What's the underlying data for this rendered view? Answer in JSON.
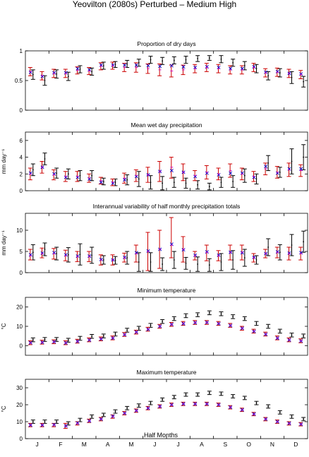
{
  "title": "Yeovilton (2080s) Perturbed – Medium High",
  "xlabel": "Half Months",
  "months": [
    "J",
    "F",
    "M",
    "A",
    "M",
    "J",
    "J",
    "A",
    "S",
    "O",
    "N",
    "D"
  ],
  "colors": {
    "observed": "#000000",
    "control": "#cc0000",
    "perturbed": "#0000cc",
    "marker": "#cc00cc"
  },
  "chart_data": [
    {
      "type": "errorbar",
      "title": "Proportion of dry days",
      "ylabel": "",
      "ylim": [
        0,
        1
      ],
      "yticks": [
        0,
        0.5,
        1
      ],
      "yticklabels": [
        "0",
        "0.5",
        "1"
      ],
      "x": [
        1,
        2,
        3,
        4,
        5,
        6,
        7,
        8,
        9,
        10,
        11,
        12,
        13,
        14,
        15,
        16,
        17,
        18,
        19,
        20,
        21,
        22,
        23,
        24
      ],
      "series": [
        {
          "role": "observed",
          "mid": [
            0.6,
            0.5,
            0.61,
            0.57,
            0.69,
            0.65,
            0.75,
            0.77,
            0.78,
            0.8,
            0.85,
            0.83,
            0.84,
            0.85,
            0.87,
            0.88,
            0.86,
            0.8,
            0.75,
            0.7,
            0.58,
            0.63,
            0.55,
            0.48
          ],
          "lo": [
            0.52,
            0.42,
            0.54,
            0.5,
            0.63,
            0.59,
            0.69,
            0.72,
            0.72,
            0.74,
            0.79,
            0.77,
            0.78,
            0.79,
            0.82,
            0.84,
            0.8,
            0.74,
            0.68,
            0.63,
            0.51,
            0.56,
            0.45,
            0.39
          ],
          "hi": [
            0.68,
            0.58,
            0.68,
            0.64,
            0.75,
            0.71,
            0.81,
            0.82,
            0.84,
            0.86,
            0.91,
            0.89,
            0.9,
            0.91,
            0.92,
            0.92,
            0.92,
            0.86,
            0.82,
            0.77,
            0.65,
            0.7,
            0.65,
            0.57
          ]
        },
        {
          "role": "control",
          "mid": [
            0.65,
            0.58,
            0.62,
            0.62,
            0.67,
            0.66,
            0.74,
            0.75,
            0.72,
            0.72,
            0.7,
            0.68,
            0.66,
            0.68,
            0.7,
            0.72,
            0.7,
            0.68,
            0.68,
            0.72,
            0.63,
            0.64,
            0.62,
            0.6
          ],
          "lo": [
            0.58,
            0.51,
            0.55,
            0.55,
            0.61,
            0.6,
            0.68,
            0.69,
            0.65,
            0.64,
            0.62,
            0.58,
            0.56,
            0.6,
            0.63,
            0.65,
            0.63,
            0.61,
            0.61,
            0.65,
            0.56,
            0.57,
            0.55,
            0.53
          ],
          "hi": [
            0.72,
            0.65,
            0.69,
            0.69,
            0.73,
            0.72,
            0.8,
            0.81,
            0.79,
            0.8,
            0.78,
            0.78,
            0.76,
            0.76,
            0.77,
            0.79,
            0.77,
            0.75,
            0.75,
            0.79,
            0.7,
            0.71,
            0.69,
            0.67
          ]
        },
        {
          "role": "perturbed",
          "mid": [
            0.64,
            0.57,
            0.63,
            0.63,
            0.7,
            0.68,
            0.76,
            0.76,
            0.76,
            0.76,
            0.75,
            0.74,
            0.75,
            0.73,
            0.72,
            0.73,
            0.72,
            0.7,
            0.7,
            0.73,
            0.64,
            0.65,
            0.62,
            0.61
          ]
        }
      ]
    },
    {
      "type": "errorbar",
      "title": "Mean wet day precipitation",
      "ylabel": "mm day⁻¹",
      "ylim": [
        0,
        7
      ],
      "yticks": [
        0,
        2,
        4,
        6
      ],
      "yticklabels": [
        "0",
        "2",
        "4",
        "6"
      ],
      "x": [
        1,
        2,
        3,
        4,
        5,
        6,
        7,
        8,
        9,
        10,
        11,
        12,
        13,
        14,
        15,
        16,
        17,
        18,
        19,
        20,
        21,
        22,
        23,
        24
      ],
      "series": [
        {
          "role": "observed",
          "mid": [
            2.5,
            3.8,
            2.1,
            2.0,
            1.8,
            1.8,
            1.1,
            1.0,
            1.3,
            1.4,
            1.0,
            0.9,
            1.0,
            0.9,
            0.7,
            0.5,
            1.0,
            1.1,
            1.8,
            1.4,
            3.3,
            2.2,
            3.5,
            4.0
          ],
          "lo": [
            1.8,
            3.1,
            1.5,
            1.4,
            1.2,
            1.2,
            0.7,
            0.6,
            0.7,
            0.5,
            0.2,
            0.1,
            0.4,
            0.3,
            0.2,
            0.1,
            0.4,
            0.4,
            1.0,
            0.8,
            2.4,
            1.6,
            2.0,
            2.5
          ],
          "hi": [
            3.2,
            4.5,
            2.7,
            2.6,
            2.4,
            2.4,
            1.5,
            1.4,
            1.9,
            2.3,
            1.8,
            1.7,
            1.6,
            1.5,
            1.2,
            0.9,
            1.6,
            1.8,
            2.6,
            2.0,
            4.2,
            2.8,
            5.0,
            5.5
          ]
        },
        {
          "role": "control",
          "mid": [
            2.0,
            2.8,
            1.9,
            1.7,
            1.7,
            1.5,
            1.2,
            1.0,
            1.5,
            1.8,
            1.9,
            2.3,
            2.8,
            2.2,
            1.8,
            2.2,
            2.0,
            2.4,
            2.0,
            1.7,
            2.6,
            2.2,
            2.5,
            2.4
          ],
          "lo": [
            1.3,
            2.1,
            1.3,
            1.1,
            1.1,
            1.0,
            0.8,
            0.6,
            0.9,
            1.1,
            1.0,
            1.1,
            1.5,
            1.2,
            1.2,
            1.4,
            1.3,
            1.6,
            1.3,
            1.1,
            1.9,
            1.5,
            1.7,
            1.7
          ],
          "hi": [
            2.7,
            3.5,
            2.5,
            2.3,
            2.3,
            2.0,
            1.6,
            1.4,
            2.1,
            2.5,
            2.8,
            3.5,
            4.0,
            3.2,
            2.4,
            3.0,
            2.7,
            3.2,
            2.7,
            2.3,
            3.3,
            2.9,
            3.3,
            3.1
          ]
        },
        {
          "role": "perturbed",
          "mid": [
            2.1,
            2.8,
            2.0,
            1.6,
            1.6,
            1.4,
            1.0,
            0.9,
            1.3,
            1.7,
            1.9,
            2.3,
            2.4,
            2.2,
            1.7,
            2.1,
            1.9,
            2.1,
            2.1,
            1.6,
            2.9,
            2.1,
            2.6,
            2.6
          ]
        }
      ]
    },
    {
      "type": "errorbar",
      "title": "Interannual variability of half monthly precipitation totals",
      "ylabel": "mm day⁻¹",
      "ylim": [
        0,
        14
      ],
      "yticks": [
        0,
        5,
        10
      ],
      "yticklabels": [
        "0",
        "5",
        "10"
      ],
      "x": [
        1,
        2,
        3,
        4,
        5,
        6,
        7,
        8,
        9,
        10,
        11,
        12,
        13,
        14,
        15,
        16,
        17,
        18,
        19,
        20,
        21,
        22,
        23,
        24
      ],
      "series": [
        {
          "role": "observed",
          "mid": [
            4.8,
            5.5,
            4.5,
            4.2,
            4.3,
            4.1,
            3.0,
            2.9,
            3.5,
            2.5,
            2.5,
            2.0,
            3.0,
            2.2,
            2.0,
            1.8,
            2.5,
            3.0,
            3.5,
            3.0,
            6.0,
            4.8,
            6.5,
            7.3
          ],
          "lo": [
            3.0,
            4.0,
            3.0,
            2.5,
            1.8,
            2.2,
            2.0,
            2.0,
            2.0,
            0.3,
            0.3,
            0.5,
            1.0,
            0.8,
            0.3,
            0.3,
            0.5,
            0.8,
            1.5,
            2.0,
            4.0,
            3.0,
            4.0,
            4.8
          ],
          "hi": [
            6.6,
            7.0,
            6.0,
            5.9,
            6.8,
            6.0,
            4.0,
            3.8,
            5.0,
            4.7,
            4.7,
            3.5,
            5.0,
            3.6,
            3.7,
            3.3,
            4.5,
            5.2,
            5.5,
            4.0,
            8.0,
            6.6,
            9.0,
            9.8
          ]
        },
        {
          "role": "control",
          "mid": [
            4.0,
            4.5,
            4.5,
            4.0,
            3.8,
            3.8,
            3.0,
            3.0,
            3.5,
            4.5,
            5.0,
            5.5,
            6.5,
            5.5,
            4.0,
            4.8,
            4.0,
            4.8,
            4.8,
            3.5,
            4.5,
            4.8,
            4.5,
            4.5
          ],
          "lo": [
            3.0,
            3.5,
            3.2,
            2.8,
            2.6,
            2.6,
            1.8,
            1.8,
            2.5,
            2.5,
            0.5,
            1.0,
            3.5,
            2.5,
            3.0,
            2.8,
            2.8,
            3.0,
            3.0,
            2.5,
            3.5,
            3.5,
            3.0,
            3.0
          ],
          "hi": [
            5.5,
            5.8,
            5.7,
            5.3,
            5.0,
            5.0,
            4.2,
            4.2,
            4.6,
            6.5,
            9.5,
            10.0,
            13.0,
            8.5,
            5.0,
            6.5,
            5.2,
            6.5,
            6.5,
            4.5,
            5.5,
            6.0,
            6.0,
            6.0
          ]
        },
        {
          "role": "perturbed",
          "mid": [
            4.2,
            4.6,
            4.7,
            4.2,
            3.9,
            3.9,
            3.1,
            3.0,
            3.6,
            4.7,
            5.1,
            5.5,
            6.7,
            5.4,
            4.1,
            4.9,
            4.1,
            4.8,
            4.7,
            3.6,
            4.5,
            4.9,
            4.6,
            4.7
          ]
        }
      ]
    },
    {
      "type": "errorbar",
      "title": "Minimum temperature",
      "ylabel": "°C",
      "ylim": [
        -5,
        25
      ],
      "yticks": [
        0,
        10,
        20
      ],
      "yticklabels": [
        "0",
        "10",
        "20"
      ],
      "x": [
        1,
        2,
        3,
        4,
        5,
        6,
        7,
        8,
        9,
        10,
        11,
        12,
        13,
        14,
        15,
        16,
        17,
        18,
        19,
        20,
        21,
        22,
        23,
        24
      ],
      "series": [
        {
          "role": "observed",
          "mid": [
            3.0,
            3.2,
            3.2,
            2.8,
            3.8,
            4.8,
            5.0,
            6.0,
            8.0,
            9.0,
            10.5,
            12.5,
            14.0,
            15.5,
            16.0,
            17.0,
            16.5,
            15.0,
            14.0,
            11.5,
            10.0,
            7.5,
            5.5,
            5.0
          ],
          "lo": [
            2.0,
            2.2,
            2.2,
            1.8,
            2.8,
            3.8,
            4.0,
            5.0,
            7.0,
            8.0,
            9.5,
            11.5,
            13.0,
            14.5,
            15.0,
            16.0,
            15.5,
            14.0,
            13.0,
            10.5,
            9.0,
            6.5,
            4.5,
            4.0
          ],
          "hi": [
            4.0,
            4.2,
            4.2,
            3.8,
            4.8,
            5.8,
            6.0,
            7.0,
            9.0,
            10.0,
            11.5,
            13.5,
            15.0,
            16.5,
            17.0,
            18.0,
            17.5,
            16.0,
            15.0,
            12.5,
            11.0,
            8.5,
            6.5,
            6.0
          ]
        },
        {
          "role": "control",
          "mid": [
            1.5,
            1.8,
            2.0,
            1.5,
            2.3,
            3.0,
            3.5,
            4.0,
            5.8,
            7.0,
            8.5,
            10.0,
            11.0,
            11.5,
            12.0,
            12.0,
            11.5,
            10.5,
            9.0,
            7.5,
            6.0,
            4.0,
            3.0,
            2.5
          ],
          "lo": [
            0.5,
            0.8,
            1.0,
            0.5,
            1.3,
            2.0,
            2.5,
            3.0,
            4.8,
            6.0,
            7.5,
            9.0,
            10.0,
            10.5,
            11.0,
            11.0,
            10.5,
            9.5,
            8.0,
            6.5,
            5.0,
            3.0,
            2.0,
            1.5
          ],
          "hi": [
            2.5,
            2.8,
            3.0,
            2.5,
            3.3,
            4.0,
            4.5,
            5.0,
            6.8,
            8.0,
            9.5,
            11.0,
            12.0,
            12.5,
            13.0,
            13.0,
            12.5,
            11.5,
            10.0,
            8.5,
            7.0,
            5.0,
            4.0,
            3.5
          ]
        },
        {
          "role": "perturbed",
          "mid": [
            1.5,
            1.7,
            2.0,
            1.4,
            2.2,
            2.9,
            3.4,
            3.9,
            5.7,
            7.0,
            8.4,
            10.0,
            11.0,
            11.4,
            11.9,
            12.0,
            11.4,
            10.4,
            9.0,
            7.4,
            5.9,
            3.9,
            2.9,
            2.4
          ]
        }
      ]
    },
    {
      "type": "errorbar",
      "title": "Maximum temperature",
      "ylabel": "°C",
      "ylim": [
        0,
        35
      ],
      "yticks": [
        0,
        10,
        20,
        30
      ],
      "yticklabels": [
        "0",
        "10",
        "20",
        "30"
      ],
      "x": [
        1,
        2,
        3,
        4,
        5,
        6,
        7,
        8,
        9,
        10,
        11,
        12,
        13,
        14,
        15,
        16,
        17,
        18,
        19,
        20,
        21,
        22,
        23,
        24
      ],
      "series": [
        {
          "role": "observed",
          "mid": [
            10.0,
            10.0,
            10.0,
            9.0,
            11.0,
            13.0,
            14.0,
            16.0,
            18.0,
            19.5,
            21.0,
            23.0,
            24.5,
            26.0,
            26.0,
            27.0,
            26.5,
            25.0,
            24.0,
            21.0,
            19.0,
            15.5,
            13.0,
            11.5
          ],
          "lo": [
            9.0,
            9.0,
            9.0,
            8.0,
            10.0,
            12.0,
            13.0,
            15.0,
            17.0,
            18.5,
            20.0,
            22.0,
            23.5,
            25.0,
            25.0,
            26.0,
            25.5,
            24.0,
            23.0,
            20.0,
            18.0,
            14.5,
            12.0,
            10.5
          ],
          "hi": [
            11.0,
            11.0,
            11.0,
            10.0,
            12.0,
            14.0,
            15.0,
            17.0,
            19.0,
            20.5,
            22.0,
            24.0,
            25.5,
            27.0,
            27.0,
            28.0,
            27.5,
            26.0,
            25.0,
            22.0,
            20.0,
            16.5,
            14.0,
            12.5
          ]
        },
        {
          "role": "control",
          "mid": [
            8.0,
            8.0,
            8.0,
            7.5,
            9.0,
            10.5,
            11.5,
            13.0,
            15.0,
            16.5,
            18.0,
            19.0,
            20.0,
            20.5,
            20.5,
            20.5,
            20.0,
            18.5,
            17.0,
            14.5,
            11.5,
            10.0,
            9.0,
            8.5
          ],
          "lo": [
            7.0,
            7.0,
            7.0,
            6.0,
            8.0,
            9.5,
            10.5,
            12.0,
            14.0,
            15.5,
            17.0,
            18.0,
            19.0,
            19.5,
            19.5,
            19.5,
            19.0,
            17.5,
            16.0,
            13.5,
            10.5,
            9.0,
            8.0,
            7.5
          ],
          "hi": [
            9.0,
            9.0,
            9.0,
            9.0,
            10.0,
            11.5,
            12.5,
            14.0,
            16.0,
            17.5,
            19.0,
            20.0,
            21.0,
            21.5,
            21.5,
            21.5,
            21.0,
            19.5,
            18.0,
            15.5,
            12.5,
            11.0,
            10.0,
            9.5
          ]
        },
        {
          "role": "perturbed",
          "mid": [
            8.0,
            8.0,
            8.2,
            7.5,
            9.2,
            10.5,
            11.5,
            13.2,
            15.0,
            16.5,
            18.0,
            19.0,
            20.0,
            20.5,
            20.5,
            20.5,
            20.0,
            18.5,
            17.0,
            14.5,
            11.5,
            10.0,
            9.0,
            8.5
          ]
        }
      ]
    }
  ]
}
